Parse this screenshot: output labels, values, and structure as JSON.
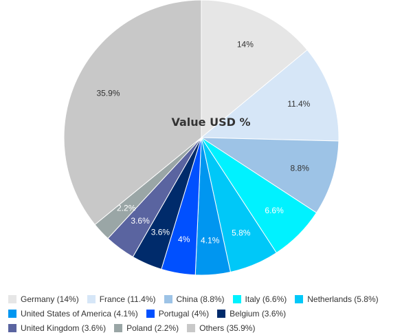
{
  "chart_data": {
    "type": "pie",
    "title": "Value USD %",
    "slices": [
      {
        "label": "Germany",
        "value": 14,
        "value_label": "14%",
        "legend": "Germany (14%)",
        "color": "#e6e6e6",
        "label_color": "#333333"
      },
      {
        "label": "France",
        "value": 11.4,
        "value_label": "11.4%",
        "legend": "France (11.4%)",
        "color": "#d6e6f7",
        "label_color": "#333333"
      },
      {
        "label": "China",
        "value": 8.8,
        "value_label": "8.8%",
        "legend": "China (8.8%)",
        "color": "#9dc3e6",
        "label_color": "#333333"
      },
      {
        "label": "Italy",
        "value": 6.6,
        "value_label": "6.6%",
        "legend": "Italy (6.6%)",
        "color": "#00f2ff",
        "label_color": "#ffffff"
      },
      {
        "label": "Netherlands",
        "value": 5.8,
        "value_label": "5.8%",
        "legend": "Netherlands (5.8%)",
        "color": "#00c8f8",
        "label_color": "#ffffff"
      },
      {
        "label": "United States of America",
        "value": 4.1,
        "value_label": "4.1%",
        "legend": "United States of America (4.1%)",
        "color": "#0096f0",
        "label_color": "#ffffff"
      },
      {
        "label": "Portugal",
        "value": 4,
        "value_label": "4%",
        "legend": "Portugal (4%)",
        "color": "#0050ff",
        "label_color": "#ffffff"
      },
      {
        "label": "Belgium",
        "value": 3.6,
        "value_label": "3.6%",
        "legend": "Belgium (3.6%)",
        "color": "#002b6b",
        "label_color": "#ffffff"
      },
      {
        "label": "United Kingdom",
        "value": 3.6,
        "value_label": "3.6%",
        "legend": "United Kingdom (3.6%)",
        "color": "#5a64a0",
        "label_color": "#ffffff"
      },
      {
        "label": "Poland",
        "value": 2.2,
        "value_label": "2.2%",
        "legend": "Poland (2.2%)",
        "color": "#9aa6a6",
        "label_color": "#ffffff"
      },
      {
        "label": "Others",
        "value": 35.9,
        "value_label": "35.9%",
        "legend": "Others (35.9%)",
        "color": "#c8c8c8",
        "label_color": "#333333"
      }
    ],
    "legend_placement": "bottom"
  }
}
